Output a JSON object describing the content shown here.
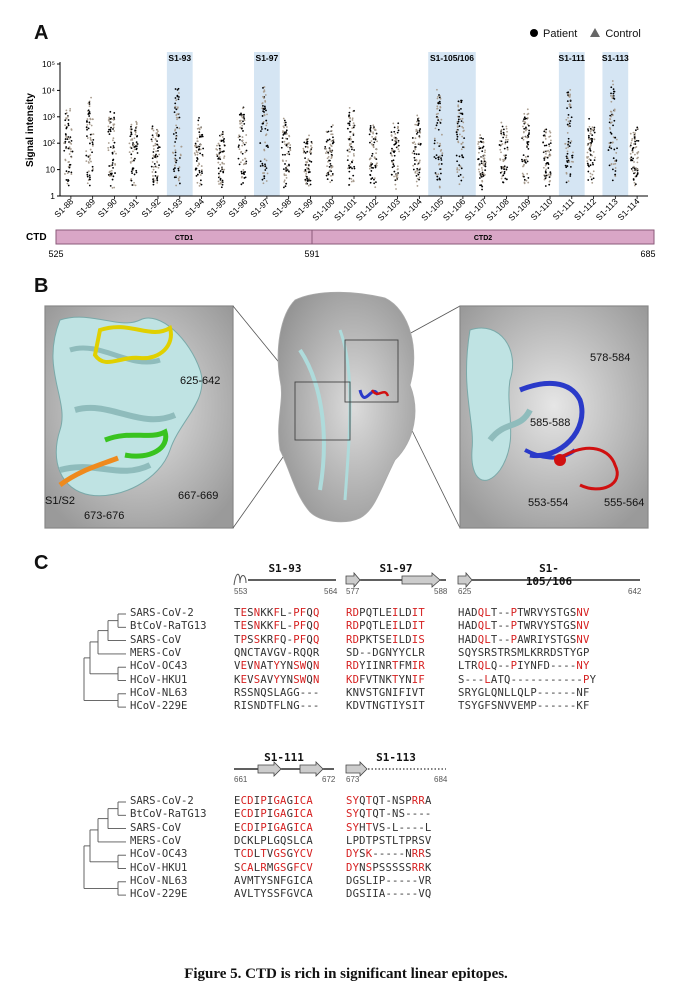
{
  "panel_a": {
    "letter": "A",
    "legend": {
      "patient": "Patient",
      "control": "Control"
    },
    "ylabel": "Signal intensity",
    "yticks": [
      "10⁵",
      "10⁴",
      "10³",
      "10²",
      "10",
      "1"
    ],
    "categories": [
      "S1-88",
      "S1-89",
      "S1-90",
      "S1-91",
      "S1-92",
      "S1-93",
      "S1-94",
      "S1-95",
      "S1-96",
      "S1-97",
      "S1-98",
      "S1-99",
      "S1-100",
      "S1-101",
      "S1-102",
      "S1-103",
      "S1-104",
      "S1-105",
      "S1-106",
      "S1-107",
      "S1-108",
      "S1-109",
      "S1-110",
      "S1-111",
      "S1-112",
      "S1-113",
      "S1-114"
    ],
    "highlights": [
      {
        "label": "S1-93"
      },
      {
        "label": "S1-97"
      },
      {
        "label": "S1-105/106"
      },
      {
        "label": "S1-111"
      },
      {
        "label": "S1-113"
      }
    ],
    "domain_bar": {
      "name": "CTD",
      "segments": [
        {
          "label": "CTD1"
        },
        {
          "label": "CTD2"
        }
      ],
      "start": "525",
      "mid": "591",
      "end": "685"
    }
  },
  "panel_b": {
    "letter": "B",
    "left_labels": [
      "625-642",
      "S1/S2",
      "673-676",
      "667-669"
    ],
    "right_labels": [
      "578-584",
      "585-588",
      "553-554",
      "555-564"
    ]
  },
  "panel_c": {
    "letter": "C",
    "species": [
      "SARS-CoV-2",
      "BtCoV-RaTG13",
      "SARS-CoV",
      "MERS-CoV",
      "HCoV-OC43",
      "HCoV-HKU1",
      "HCoV-NL63",
      "HCoV-229E"
    ],
    "top_epitopes": [
      {
        "title": "S1-93",
        "start": "553",
        "end": "564"
      },
      {
        "title": "S1-97",
        "start": "577",
        "end": "588"
      },
      {
        "title": "S1-105/106",
        "start": "625",
        "end": "642"
      }
    ],
    "bottom_epitopes": [
      {
        "title": "S1-111",
        "start": "661",
        "end": "672"
      },
      {
        "title": "S1-113",
        "start": "673",
        "end": "684"
      }
    ],
    "s1_93": [
      "TESNKKFL-PFQQ",
      "TESNKKFL-PFQQ",
      "TPSSKRFQ-PFQQ",
      "QNCTAVGV-RQQR",
      "VEVNATYYNSWQN",
      "KEVSAVYYNSWQN",
      "RSSNQSLAGG---",
      "RISNDTFLNG---"
    ],
    "s1_97": [
      "RDPQTLEILDIT",
      "RDPQTLEILDIT",
      "RDPKTSEILDIS",
      "SD--DGNYYCLR",
      "RDYIINRTFMIR",
      "KDFVTNKTYNIF",
      "KNVSTGNIFIVT",
      "KDVTNGTIYSIT"
    ],
    "s1_105": [
      "HADQLT--PTWRVYSTGSNV",
      "HADQLT--PTWRVYSTGSNV",
      "HADQLT--PAWRIYSTGSNV",
      "SQYSRSTRSMLKRRDSTYGP",
      "LTRQLQ--PIYNFD----NY",
      "S---LATQ-----------PY",
      "SRYGLQNLLQLP------NF",
      "TSYGFSNVVEMP------KF"
    ],
    "s1_111": [
      "ECDIPIGAGICA",
      "ECDIPIGAGICA",
      "ECDIPIGAGICA",
      "DCKLPLGQSLCA",
      "TCDLTVGSGYCV",
      "SCALRMGSGFCV",
      "AVMTYSNFGICA",
      "AVLTYSSFGVCA"
    ],
    "s1_113": [
      "SYQTQT-NSPRRA",
      "SYQTQT-NS----",
      "SYHTVS-L----L",
      "LPDTPSTLTPRSV",
      "DYSK-----NRRS",
      "DYNSPSSSSSRRK",
      "DGSLIP-----VR",
      "DGSIIA-----VQ"
    ]
  },
  "caption": "Figure 5. CTD is rich in significant linear epitopes."
}
